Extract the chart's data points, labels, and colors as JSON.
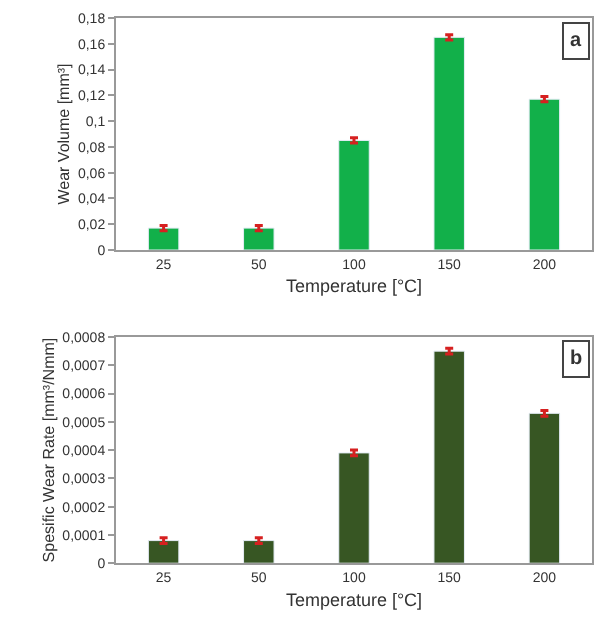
{
  "chart_data": [
    {
      "type": "bar",
      "categories": [
        "25",
        "50",
        "100",
        "150",
        "200"
      ],
      "values": [
        0.017,
        0.017,
        0.085,
        0.165,
        0.117
      ],
      "errors": [
        0.002,
        0.002,
        0.002,
        0.002,
        0.002
      ],
      "color": "#12b04a",
      "xlabel": "Temperature [°C]",
      "ylabel": "Wear Volume [mm³]",
      "ylim": [
        0,
        0.18
      ],
      "yticks": [
        0,
        {
          "value": 0.02,
          "label": "0,02"
        },
        {
          "value": 0.04,
          "label": "0,04"
        },
        {
          "value": 0.06,
          "label": "0,06"
        },
        {
          "value": 0.08,
          "label": "0,08"
        },
        {
          "value": 0.1,
          "label": "0,1"
        },
        {
          "value": 0.12,
          "label": "0,12"
        },
        {
          "value": 0.14,
          "label": "0,14"
        },
        {
          "value": 0.16,
          "label": "0,16"
        },
        {
          "value": 0.18,
          "label": "0,18"
        }
      ],
      "annotations": [
        "a"
      ]
    },
    {
      "type": "bar",
      "categories": [
        "25",
        "50",
        "100",
        "150",
        "200"
      ],
      "values": [
        8e-05,
        8e-05,
        0.00039,
        0.00075,
        0.00053
      ],
      "errors": [
        1e-05,
        1e-05,
        1e-05,
        1e-05,
        1e-05
      ],
      "color": "#375623",
      "xlabel": "Temperature [°C]",
      "ylabel": "Spesific Wear Rate [mm³/Nmm]",
      "ylim": [
        0,
        0.0008
      ],
      "yticks": [
        0,
        {
          "value": 0.0001,
          "label": "0,0001"
        },
        {
          "value": 0.0002,
          "label": "0,0002"
        },
        {
          "value": 0.0003,
          "label": "0,0003"
        },
        {
          "value": 0.0004,
          "label": "0,0004"
        },
        {
          "value": 0.0005,
          "label": "0,0005"
        },
        {
          "value": 0.0006,
          "label": "0,0006"
        },
        {
          "value": 0.0007,
          "label": "0,0007"
        },
        {
          "value": 0.0008,
          "label": "0,0008"
        }
      ],
      "annotations": [
        "b"
      ]
    }
  ]
}
